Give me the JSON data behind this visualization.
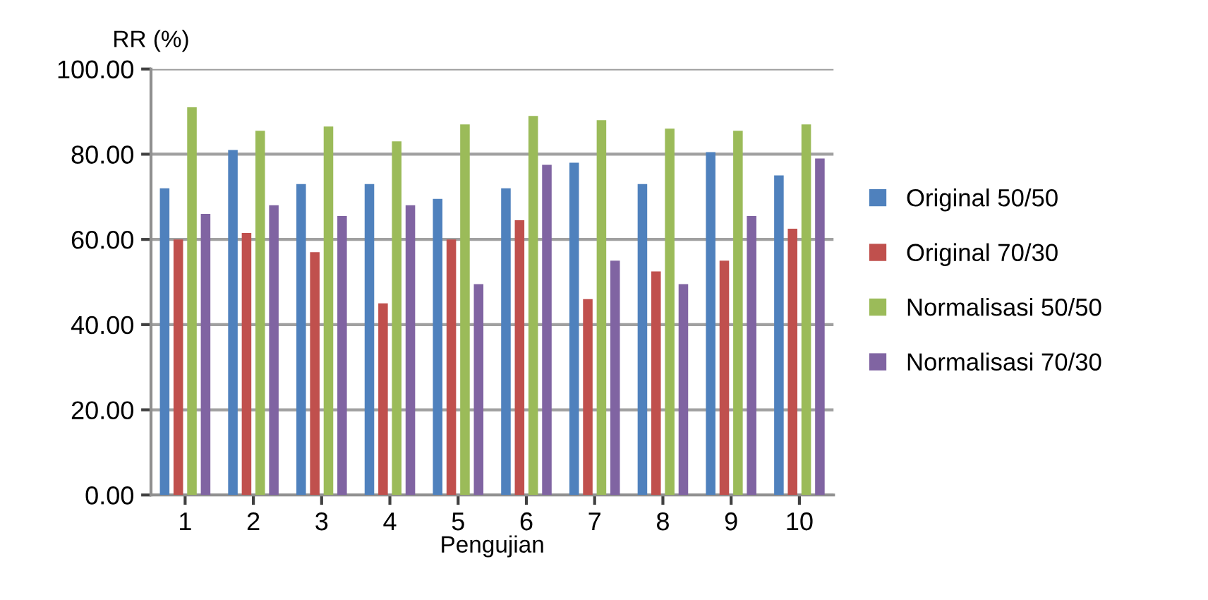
{
  "chart_data": {
    "type": "bar",
    "ylabel": "RR (%)",
    "xlabel": "Pengujian",
    "categories": [
      "1",
      "2",
      "3",
      "4",
      "5",
      "6",
      "7",
      "8",
      "9",
      "10"
    ],
    "series": [
      {
        "name": "Original 50/50",
        "color": "#4f81bd",
        "values": [
          72,
          81,
          73,
          73,
          69.5,
          72,
          78,
          73,
          80.5,
          75
        ]
      },
      {
        "name": "Original 70/30",
        "color": "#c0504d",
        "values": [
          60,
          61.5,
          57,
          45,
          60,
          64.5,
          46,
          52.5,
          55,
          62.5
        ]
      },
      {
        "name": "Normalisasi 50/50",
        "color": "#9bbb59",
        "values": [
          91,
          85.5,
          86.5,
          83,
          87,
          89,
          88,
          86,
          85.5,
          87
        ]
      },
      {
        "name": "Normalisasi 70/30",
        "color": "#8064a2",
        "values": [
          66,
          68,
          65.5,
          68,
          49.5,
          77.5,
          55,
          49.5,
          65.5,
          79
        ]
      }
    ],
    "ylim": [
      0,
      100
    ],
    "yticks": [
      {
        "value": 0,
        "label": "0.00"
      },
      {
        "value": 20,
        "label": "20.00"
      },
      {
        "value": 40,
        "label": "40.00"
      },
      {
        "value": 60,
        "label": "60.00"
      },
      {
        "value": 80,
        "label": "80.00"
      },
      {
        "value": 100,
        "label": "100.00"
      }
    ],
    "grid": "y",
    "legend": "right"
  }
}
